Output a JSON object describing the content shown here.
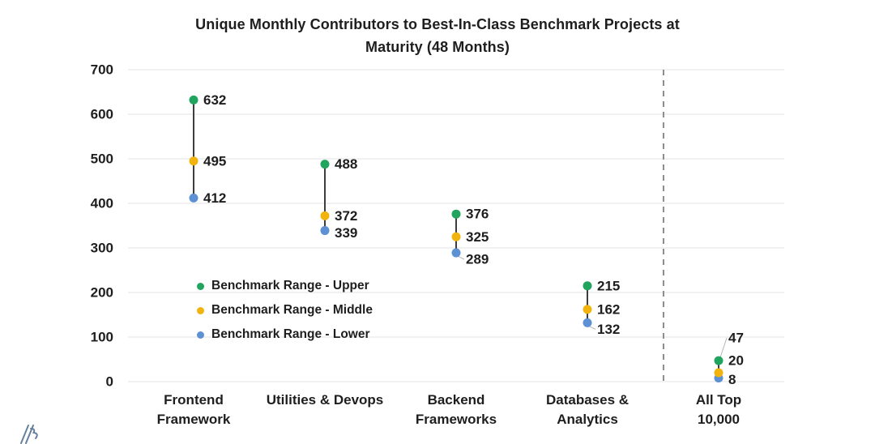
{
  "chart_data": {
    "type": "scatter",
    "title": "Unique Monthly Contributors to Best-In-Class Benchmark Projects at Maturity (48 Months)",
    "title_lines": [
      "Unique Monthly Contributors to Best-In-Class Benchmark Projects at",
      "Maturity (48 Months)"
    ],
    "categories": [
      "Frontend Framework",
      "Utilities & Devops",
      "Backend Frameworks",
      "Databases & Analytics",
      "All Top 10,000"
    ],
    "category_label_lines": [
      [
        "Frontend",
        "Framework"
      ],
      [
        "Utilities & Devops"
      ],
      [
        "Backend",
        "Frameworks"
      ],
      [
        "Databases &",
        "Analytics"
      ],
      [
        "All Top",
        "10,000"
      ]
    ],
    "series": [
      {
        "name": "Benchmark Range - Upper",
        "color": "#21A45D",
        "values": [
          632,
          488,
          376,
          215,
          47
        ]
      },
      {
        "name": "Benchmark Range - Middle",
        "color": "#F1B40F",
        "values": [
          495,
          372,
          325,
          162,
          20
        ]
      },
      {
        "name": "Benchmark Range - Lower",
        "color": "#5E91D3",
        "values": [
          412,
          339,
          289,
          132,
          8
        ]
      }
    ],
    "ylim": [
      0,
      700
    ],
    "ytick_step": 100,
    "ytick_labels": [
      "0",
      "100",
      "200",
      "300",
      "400",
      "500",
      "600",
      "700"
    ],
    "grid": true,
    "legend_position": "inside-left",
    "separator": {
      "after_category": "Databases & Analytics",
      "style": "dashed"
    },
    "label_adjust": [
      {
        "category": 1,
        "series": 2,
        "dy": 3,
        "leader": false
      },
      {
        "category": 2,
        "series": 2,
        "dy": 8,
        "leader": true
      },
      {
        "category": 3,
        "series": 2,
        "dy": 8,
        "leader": true
      },
      {
        "category": 4,
        "series": 0,
        "dy": -28,
        "leader": true
      },
      {
        "category": 4,
        "series": 1,
        "dy": -15,
        "leader": false
      },
      {
        "category": 4,
        "series": 2,
        "dy": 2,
        "leader": false
      }
    ]
  },
  "colors": {
    "background": "#ffffff",
    "text": "#1e1e1e",
    "grid": "#e3e3e3",
    "connector": "#3d3d3d",
    "separator": "#8c8c8c",
    "leader": "#b3b3b3",
    "logo": "#64809E"
  },
  "icons": {
    "logo": "brand-slashes-logo"
  }
}
